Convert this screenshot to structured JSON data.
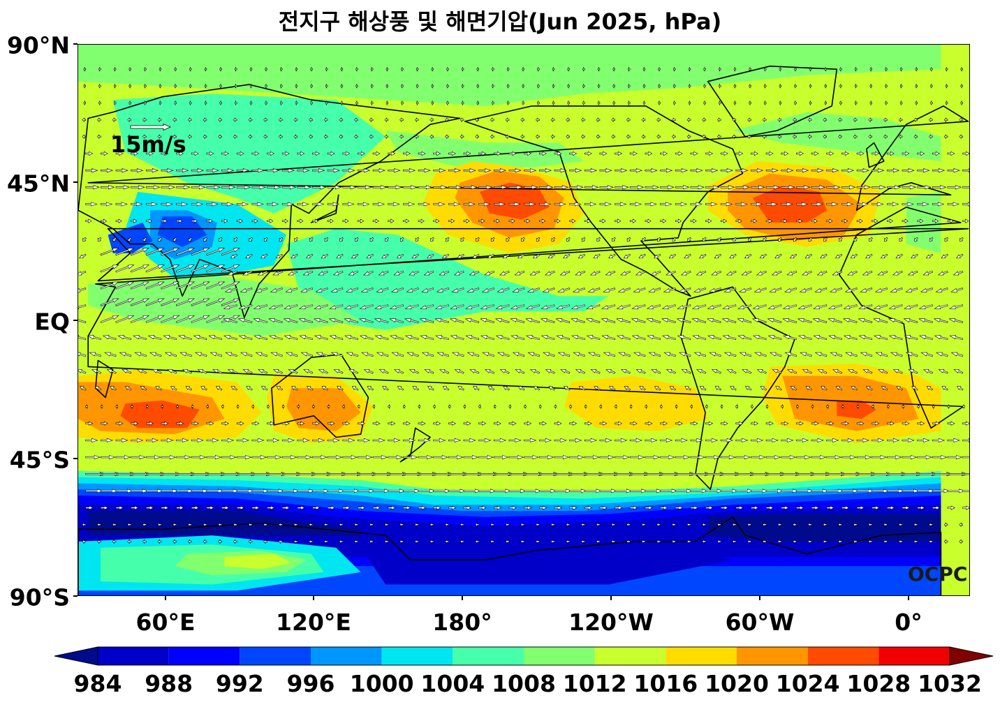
{
  "title": "전지구 해상풍 및 해면기압(Jun 2025, hPa)",
  "lat_labels": [
    "90°N",
    "45°N",
    "EQ",
    "45°S",
    "90°S"
  ],
  "lon_labels": [
    "60°E",
    "120°E",
    "180°",
    "120°W",
    "60°W",
    "0°"
  ],
  "reference_vector": {
    "label": "15m/s",
    "speed_ms": 15
  },
  "credit": "OCPC",
  "colorbar": {
    "ticks": [
      "984",
      "988",
      "992",
      "996",
      "1000",
      "1004",
      "1008",
      "1012",
      "1016",
      "1020",
      "1024",
      "1028",
      "1032"
    ],
    "colors": [
      "#000a8c",
      "#0000c8",
      "#0000ff",
      "#0046ff",
      "#0096ff",
      "#00e6f0",
      "#46ffaa",
      "#82ff6e",
      "#c8ff2d",
      "#ffdc00",
      "#ff9600",
      "#ff4b00",
      "#f00000",
      "#820000"
    ]
  },
  "chart_data": {
    "type": "heatmap",
    "title": "전지구 해상풍 및 해면기압(Jun 2025, hPa)",
    "xlabel": "",
    "ylabel": "",
    "x_range": [
      "36°E",
      "24°E (360°)"
    ],
    "y_range": [
      "90°S",
      "90°N"
    ],
    "units": "hPa",
    "pressure_centers": [
      {
        "type": "high",
        "lat": 40,
        "lon": -145,
        "value_hpa": 1028
      },
      {
        "type": "high",
        "lat": 38,
        "lon": -40,
        "value_hpa": 1028
      },
      {
        "type": "high",
        "lat": -30,
        "lon": 70,
        "value_hpa": 1024
      },
      {
        "type": "high",
        "lat": -30,
        "lon": 130,
        "value_hpa": 1020
      },
      {
        "type": "high",
        "lat": -27,
        "lon": -100,
        "value_hpa": 1020
      },
      {
        "type": "high",
        "lat": -30,
        "lon": -10,
        "value_hpa": 1024
      },
      {
        "type": "low",
        "lat": 30,
        "lon": 65,
        "value_hpa": 996
      },
      {
        "type": "low",
        "lat": -65,
        "lon": 90,
        "value_hpa": 984
      },
      {
        "type": "low",
        "lat": -68,
        "lon": -30,
        "value_hpa": 984
      }
    ],
    "grid": false
  }
}
